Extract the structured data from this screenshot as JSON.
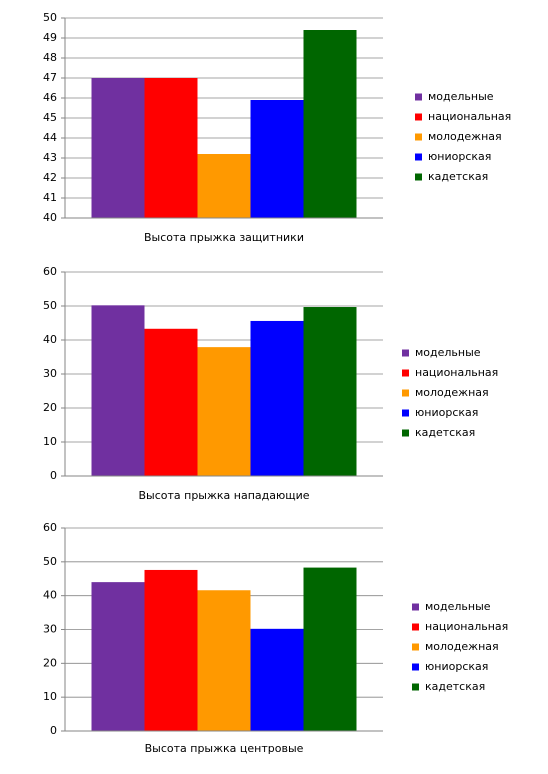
{
  "chart_data": [
    {
      "type": "bar",
      "categories": [
        "Высота прыжка защитники"
      ],
      "ylim": [
        40,
        50
      ],
      "yticks": [
        40,
        41,
        42,
        43,
        44,
        45,
        46,
        47,
        48,
        49,
        50
      ],
      "grid": true,
      "legend": "right",
      "series": [
        {
          "name": "модельные",
          "color": "#7030a0",
          "values": [
            47
          ]
        },
        {
          "name": "национальная",
          "color": "#ff0000",
          "values": [
            47
          ]
        },
        {
          "name": "молодежная",
          "color": "#ff9900",
          "values": [
            43.2
          ]
        },
        {
          "name": "юниорская",
          "color": "#0000ff",
          "values": [
            45.9
          ]
        },
        {
          "name": "кадетская",
          "color": "#006600",
          "values": [
            49.4
          ]
        }
      ]
    },
    {
      "type": "bar",
      "categories": [
        "Высота прыжка  нападающие"
      ],
      "ylim": [
        0,
        60
      ],
      "yticks": [
        0,
        10,
        20,
        30,
        40,
        50,
        60
      ],
      "grid": true,
      "legend": "right",
      "series": [
        {
          "name": "модельные",
          "color": "#7030a0",
          "values": [
            50.2
          ]
        },
        {
          "name": "национальная",
          "color": "#ff0000",
          "values": [
            43.3
          ]
        },
        {
          "name": "молодежная",
          "color": "#ff9900",
          "values": [
            37.9
          ]
        },
        {
          "name": "юниорская",
          "color": "#0000ff",
          "values": [
            45.6
          ]
        },
        {
          "name": "кадетская",
          "color": "#006600",
          "values": [
            49.7
          ]
        }
      ]
    },
    {
      "type": "bar",
      "categories": [
        "Высота прыжка центровые"
      ],
      "ylim": [
        0,
        60
      ],
      "yticks": [
        0,
        10,
        20,
        30,
        40,
        50,
        60
      ],
      "grid": true,
      "legend": "right",
      "series": [
        {
          "name": "модельные",
          "color": "#7030a0",
          "values": [
            44
          ]
        },
        {
          "name": "национальная",
          "color": "#ff0000",
          "values": [
            47.6
          ]
        },
        {
          "name": "молодежная",
          "color": "#ff9900",
          "values": [
            41.6
          ]
        },
        {
          "name": "юниорская",
          "color": "#0000ff",
          "values": [
            30.2
          ]
        },
        {
          "name": "кадетская",
          "color": "#006600",
          "values": [
            48.3
          ]
        }
      ]
    }
  ]
}
